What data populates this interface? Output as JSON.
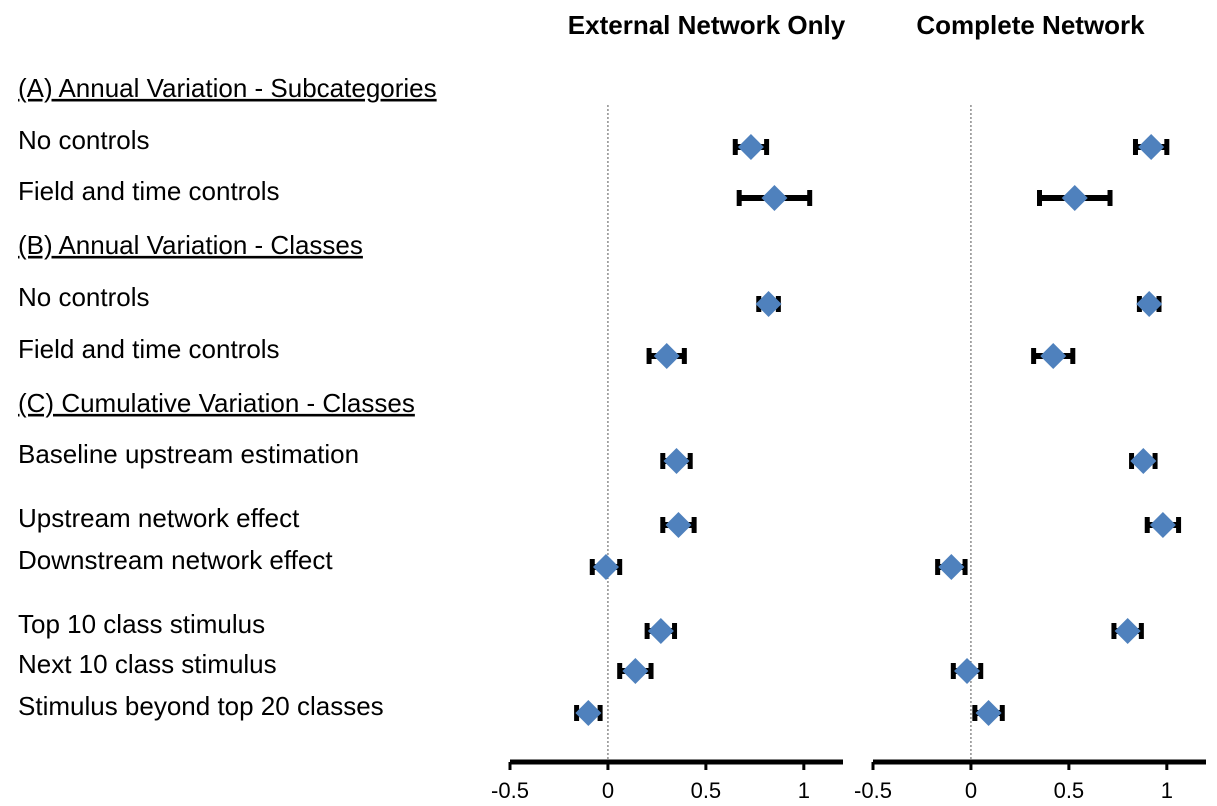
{
  "chart_data": {
    "type": "forest",
    "categories": [
      "(A) Annual Variation - Subcategories",
      "No controls",
      "Field and time controls",
      "(B) Annual Variation - Classes",
      "No controls",
      "Field and time controls",
      "(C) Cumulative Variation - Classes",
      "Baseline upstream estimation",
      "Upstream network effect",
      "Downstream network effect",
      "Top 10 class stimulus",
      "Next 10 class stimulus",
      "Stimulus beyond top 20 classes"
    ],
    "series": [
      {
        "name": "External Network Only",
        "color": "#4f81bd",
        "values": [
          null,
          0.73,
          0.85,
          null,
          0.82,
          0.3,
          null,
          0.35,
          0.36,
          -0.01,
          0.27,
          0.14,
          -0.1
        ],
        "errors": [
          null,
          0.08,
          0.18,
          null,
          0.05,
          0.09,
          null,
          0.07,
          0.08,
          0.07,
          0.07,
          0.08,
          0.06
        ]
      },
      {
        "name": "Complete Network",
        "color": "#4f81bd",
        "values": [
          null,
          0.92,
          0.53,
          null,
          0.91,
          0.42,
          null,
          0.88,
          0.98,
          -0.1,
          0.8,
          -0.02,
          0.09
        ],
        "errors": [
          null,
          0.08,
          0.18,
          null,
          0.05,
          0.1,
          null,
          0.06,
          0.08,
          0.07,
          0.07,
          0.07,
          0.07
        ]
      }
    ],
    "xlim": [
      -0.5,
      1.2
    ],
    "xticks": [
      -0.5,
      0,
      0.5,
      1
    ],
    "zero_line": true
  }
}
